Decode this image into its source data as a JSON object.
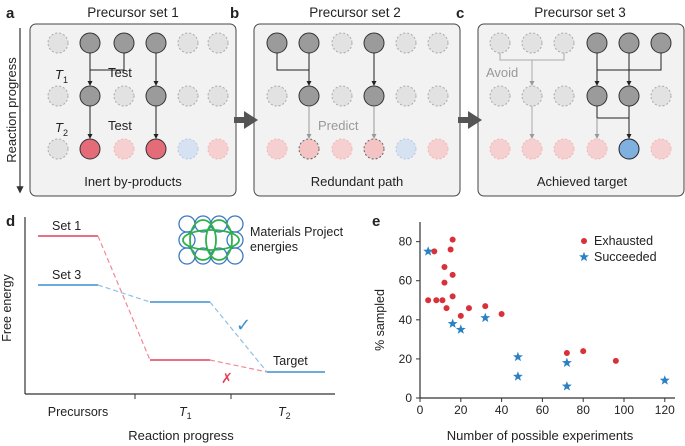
{
  "panel_labels": {
    "a": "a",
    "b": "b",
    "c": "c",
    "d": "d",
    "e": "e"
  },
  "top": {
    "y_axis_label": "Reaction progress",
    "panel_a": {
      "title": "Precursor set 1",
      "t1": "T",
      "t2": "T",
      "sub1": "1",
      "sub2": "2",
      "test1": "Test",
      "test2": "Test",
      "caption": "Inert by-products"
    },
    "panel_b": {
      "title": "Precursor set 2",
      "predict": "Predict",
      "caption": "Redundant path"
    },
    "panel_c": {
      "title": "Precursor set 3",
      "avoid": "Avoid",
      "caption": "Achieved target"
    }
  },
  "panel_d": {
    "set1": "Set 1",
    "set3": "Set 3",
    "target": "Target",
    "mp_label_line1": "Materials Project",
    "mp_label_line2": "energies",
    "ylabel": "Free energy",
    "xlabel": "Reaction progress",
    "x_ticks": {
      "precursors": "Precursors",
      "t": "T",
      "sub1": "1",
      "sub2": "2"
    },
    "check": "✓",
    "cross": "✗",
    "colors": {
      "set1": "#e0435a",
      "set3": "#3b8fcf",
      "mp_green": "#2fb24a",
      "mp_blue": "#3a78c2"
    }
  },
  "chart_data": {
    "type": "scatter",
    "xlabel": "Number of possible experiments",
    "ylabel": "% sampled",
    "xlim": [
      0,
      125
    ],
    "ylim": [
      0,
      88
    ],
    "x_ticks": [
      0,
      20,
      40,
      60,
      80,
      100,
      120
    ],
    "y_ticks": [
      0,
      20,
      40,
      60,
      80
    ],
    "legend_position": "top-right",
    "series": [
      {
        "name": "Exhausted",
        "marker": "circle",
        "color": "#d9303a",
        "points": [
          [
            4,
            50
          ],
          [
            7,
            75
          ],
          [
            8,
            50
          ],
          [
            11,
            50
          ],
          [
            12,
            67
          ],
          [
            12,
            59
          ],
          [
            13,
            46
          ],
          [
            15,
            76
          ],
          [
            16,
            81
          ],
          [
            16,
            63
          ],
          [
            16,
            52
          ],
          [
            20,
            42
          ],
          [
            24,
            46
          ],
          [
            32,
            47
          ],
          [
            40,
            43
          ],
          [
            72,
            23
          ],
          [
            80,
            24
          ],
          [
            96,
            19
          ]
        ]
      },
      {
        "name": "Succeeded",
        "marker": "star",
        "color": "#2a82c4",
        "points": [
          [
            4,
            75
          ],
          [
            16,
            38
          ],
          [
            20,
            35
          ],
          [
            32,
            41
          ],
          [
            48,
            21
          ],
          [
            48,
            11
          ],
          [
            72,
            18
          ],
          [
            72,
            6
          ],
          [
            120,
            9
          ]
        ]
      }
    ]
  }
}
